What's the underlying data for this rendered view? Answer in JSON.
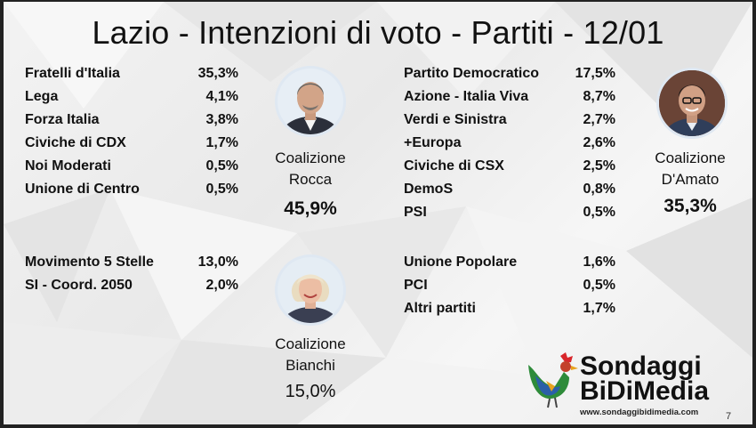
{
  "title": "Lazio - Intenzioni di voto - Partiti - 12/01",
  "chart_data": {
    "type": "table",
    "groups": [
      {
        "coalition": "Coalizione Rocca",
        "coalition_label_line1": "Coalizione",
        "coalition_label_line2": "Rocca",
        "total": "45,9%",
        "parties": [
          {
            "name": "Fratelli d'Italia",
            "value": "35,3%"
          },
          {
            "name": "Lega",
            "value": "4,1%"
          },
          {
            "name": "Forza Italia",
            "value": "3,8%"
          },
          {
            "name": "Civiche di CDX",
            "value": "1,7%"
          },
          {
            "name": "Noi Moderati",
            "value": "0,5%"
          },
          {
            "name": "Unione di Centro",
            "value": "0,5%"
          }
        ]
      },
      {
        "coalition": "Coalizione D'Amato",
        "coalition_label_line1": "Coalizione",
        "coalition_label_line2": "D'Amato",
        "total": "35,3%",
        "parties": [
          {
            "name": "Partito Democratico",
            "value": "17,5%"
          },
          {
            "name": "Azione - Italia Viva",
            "value": "8,7%"
          },
          {
            "name": "Verdi e Sinistra",
            "value": "2,7%"
          },
          {
            "name": "+Europa",
            "value": "2,6%"
          },
          {
            "name": "Civiche di CSX",
            "value": "2,5%"
          },
          {
            "name": "DemoS",
            "value": "0,8%"
          },
          {
            "name": "PSI",
            "value": "0,5%"
          }
        ]
      },
      {
        "coalition": "Coalizione Bianchi",
        "coalition_label_line1": "Coalizione",
        "coalition_label_line2": "Bianchi",
        "total": "15,0%",
        "parties": [
          {
            "name": "Movimento 5 Stelle",
            "value": "13,0%"
          },
          {
            "name": "SI - Coord. 2050",
            "value": "2,0%"
          }
        ]
      },
      {
        "coalition": "",
        "parties": [
          {
            "name": "Unione Popolare",
            "value": "1,6%"
          },
          {
            "name": "PCI",
            "value": "0,5%"
          },
          {
            "name": "Altri partiti",
            "value": "1,7%"
          }
        ]
      }
    ]
  },
  "logo": {
    "line1": "Sondaggi",
    "line2": "BiDiMedia",
    "url": "www.sondaggibidimedia.com"
  },
  "page_number": "7",
  "colors": {
    "background": "#efefef",
    "text": "#111111",
    "frame": "#222222",
    "logo_red": "#d8262b",
    "logo_green": "#2e8b3a",
    "logo_blue": "#2b5fa8"
  }
}
